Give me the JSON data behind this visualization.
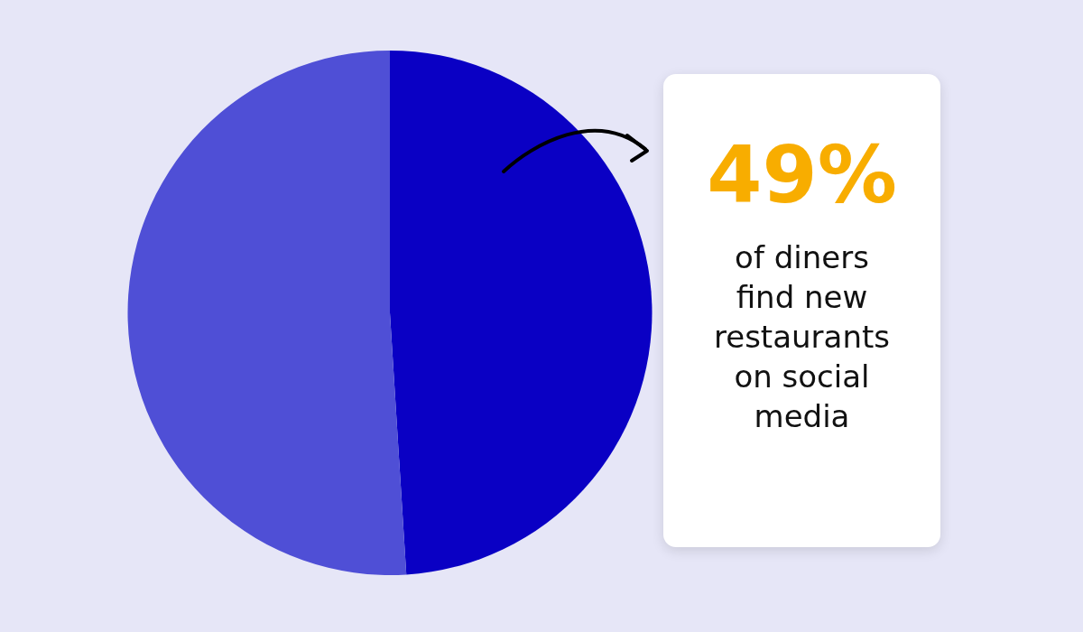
{
  "chart_data": {
    "type": "pie",
    "categories": [
      null,
      null
    ],
    "values": [
      49,
      51
    ],
    "colors": [
      "#0a00c4",
      "#4f4fd6"
    ],
    "legend": false,
    "annotations": [
      "49%",
      "of diners find new restaurants on social media"
    ]
  }
}
